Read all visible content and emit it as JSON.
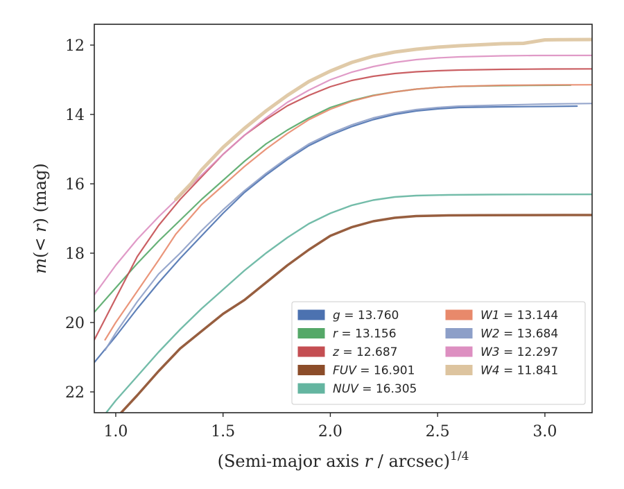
{
  "chart_data": {
    "type": "line",
    "xlabel": "(Semi-major axis r / arcsec)",
    "xlabel_power": "1/4",
    "ylabel": "m(< r) (mag)",
    "xlim": [
      0.9,
      3.22
    ],
    "ylim": [
      22.6,
      11.4
    ],
    "y_inverted": true,
    "xticks": [
      1.0,
      1.5,
      2.0,
      2.5,
      3.0
    ],
    "xtick_labels": [
      "1.0",
      "1.5",
      "2.0",
      "2.5",
      "3.0"
    ],
    "yticks": [
      12,
      14,
      16,
      18,
      20,
      22
    ],
    "ytick_labels": [
      "12",
      "14",
      "16",
      "18",
      "20",
      "22"
    ],
    "grid": false,
    "legend_position": "lower-right",
    "legend_columns": 2,
    "series": [
      {
        "name": "g",
        "label": "13.760",
        "color": "#4c72b0",
        "width": 2.2,
        "x": [
          0.9,
          1.0,
          1.1,
          1.2,
          1.3,
          1.4,
          1.5,
          1.6,
          1.7,
          1.8,
          1.9,
          2.0,
          2.1,
          2.2,
          2.3,
          2.4,
          2.5,
          2.6,
          2.8,
          3.0,
          3.15
        ],
        "y": [
          21.15,
          20.4,
          19.6,
          18.85,
          18.15,
          17.5,
          16.85,
          16.25,
          15.75,
          15.3,
          14.9,
          14.6,
          14.35,
          14.15,
          14.0,
          13.9,
          13.84,
          13.8,
          13.78,
          13.77,
          13.76
        ]
      },
      {
        "name": "r",
        "label": "13.156",
        "color": "#55a868",
        "width": 2.2,
        "x": [
          0.9,
          1.0,
          1.1,
          1.2,
          1.3,
          1.4,
          1.5,
          1.6,
          1.7,
          1.8,
          1.9,
          2.0,
          2.1,
          2.2,
          2.3,
          2.4,
          2.5,
          2.6,
          2.8,
          3.0,
          3.12
        ],
        "y": [
          19.7,
          19.0,
          18.3,
          17.65,
          17.05,
          16.45,
          15.9,
          15.35,
          14.85,
          14.45,
          14.1,
          13.8,
          13.6,
          13.45,
          13.35,
          13.27,
          13.22,
          13.19,
          13.17,
          13.16,
          13.156
        ]
      },
      {
        "name": "z",
        "label": "12.687",
        "color": "#c44e52",
        "width": 2.2,
        "x": [
          0.9,
          1.0,
          1.1,
          1.2,
          1.3,
          1.4,
          1.5,
          1.6,
          1.7,
          1.8,
          1.9,
          2.0,
          2.1,
          2.2,
          2.3,
          2.4,
          2.5,
          2.6,
          2.8,
          3.0,
          3.22
        ],
        "y": [
          20.5,
          19.3,
          18.1,
          17.2,
          16.45,
          15.8,
          15.15,
          14.6,
          14.15,
          13.75,
          13.45,
          13.2,
          13.02,
          12.9,
          12.82,
          12.77,
          12.74,
          12.72,
          12.7,
          12.69,
          12.687
        ]
      },
      {
        "name": "FUV",
        "label": "16.901",
        "color": "#8c4d2a",
        "width": 3.5,
        "x": [
          0.98,
          1.1,
          1.2,
          1.3,
          1.4,
          1.5,
          1.6,
          1.7,
          1.8,
          1.9,
          2.0,
          2.1,
          2.2,
          2.3,
          2.4,
          2.55,
          2.7,
          2.9,
          3.1,
          3.22
        ],
        "y": [
          22.9,
          22.1,
          21.4,
          20.75,
          20.25,
          19.75,
          19.35,
          18.85,
          18.35,
          17.9,
          17.5,
          17.25,
          17.08,
          16.98,
          16.93,
          16.91,
          16.905,
          16.902,
          16.901,
          16.901
        ]
      },
      {
        "name": "NUV",
        "label": "16.305",
        "color": "#64b5a0",
        "width": 2.4,
        "x": [
          0.93,
          1.0,
          1.1,
          1.2,
          1.3,
          1.4,
          1.5,
          1.6,
          1.7,
          1.8,
          1.9,
          2.0,
          2.1,
          2.2,
          2.3,
          2.4,
          2.55,
          2.75,
          3.0,
          3.22
        ],
        "y": [
          22.8,
          22.25,
          21.55,
          20.85,
          20.2,
          19.6,
          19.05,
          18.5,
          18.0,
          17.55,
          17.15,
          16.85,
          16.62,
          16.47,
          16.38,
          16.34,
          16.32,
          16.31,
          16.306,
          16.305
        ]
      },
      {
        "name": "W1",
        "label": "13.144",
        "color": "#e8896b",
        "width": 2.2,
        "x": [
          0.95,
          1.0,
          1.1,
          1.2,
          1.28,
          1.4,
          1.5,
          1.6,
          1.7,
          1.8,
          1.9,
          2.0,
          2.1,
          2.2,
          2.3,
          2.4,
          2.5,
          2.6,
          2.8,
          3.0,
          3.22
        ],
        "y": [
          20.5,
          20.0,
          19.1,
          18.2,
          17.45,
          16.6,
          16.05,
          15.5,
          15.0,
          14.55,
          14.15,
          13.85,
          13.62,
          13.46,
          13.35,
          13.27,
          13.22,
          13.19,
          13.16,
          13.15,
          13.144
        ]
      },
      {
        "name": "W2",
        "label": "13.684",
        "color": "#8d9fc8",
        "width": 2.2,
        "x": [
          0.95,
          1.0,
          1.1,
          1.2,
          1.3,
          1.4,
          1.5,
          1.6,
          1.7,
          1.8,
          1.9,
          2.0,
          2.1,
          2.2,
          2.3,
          2.4,
          2.5,
          2.6,
          2.8,
          3.0,
          3.22
        ],
        "y": [
          20.8,
          20.3,
          19.4,
          18.6,
          18.0,
          17.35,
          16.75,
          16.2,
          15.7,
          15.25,
          14.85,
          14.55,
          14.3,
          14.1,
          13.96,
          13.86,
          13.8,
          13.76,
          13.73,
          13.7,
          13.684
        ]
      },
      {
        "name": "W3",
        "label": "12.297",
        "color": "#dd8fc1",
        "width": 2.2,
        "x": [
          0.9,
          1.0,
          1.1,
          1.2,
          1.3,
          1.4,
          1.5,
          1.6,
          1.7,
          1.8,
          1.9,
          2.0,
          2.1,
          2.2,
          2.3,
          2.4,
          2.5,
          2.6,
          2.8,
          2.95,
          3.22
        ],
        "y": [
          19.2,
          18.35,
          17.6,
          16.95,
          16.35,
          15.75,
          15.15,
          14.6,
          14.1,
          13.65,
          13.3,
          13.0,
          12.78,
          12.62,
          12.5,
          12.42,
          12.37,
          12.34,
          12.31,
          12.3,
          12.297
        ]
      },
      {
        "name": "W4",
        "label": "11.841",
        "color": "#ddc49f",
        "width": 5.0,
        "x": [
          1.28,
          1.35,
          1.4,
          1.5,
          1.6,
          1.7,
          1.8,
          1.9,
          2.0,
          2.1,
          2.2,
          2.3,
          2.4,
          2.5,
          2.6,
          2.7,
          2.8,
          2.9,
          2.95,
          3.0,
          3.06,
          3.22
        ],
        "y": [
          16.45,
          16.0,
          15.6,
          14.95,
          14.4,
          13.9,
          13.45,
          13.05,
          12.75,
          12.5,
          12.32,
          12.2,
          12.12,
          12.06,
          12.02,
          11.99,
          11.96,
          11.95,
          11.9,
          11.85,
          11.845,
          11.841
        ]
      }
    ]
  }
}
